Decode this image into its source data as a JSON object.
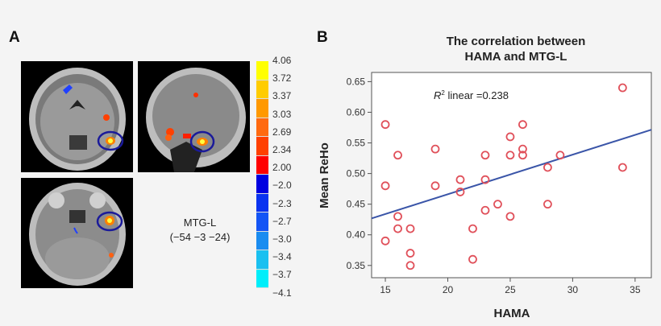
{
  "panel_a": {
    "label": "A",
    "roi_name": "MTG-L",
    "roi_coords": "(−54 −3 −24)",
    "colorbar": {
      "ticks": [
        "4.06",
        "3.72",
        "3.37",
        "3.03",
        "2.69",
        "2.34",
        "2.00",
        "−2.0",
        "−2.3",
        "−2.7",
        "−3.0",
        "−3.4",
        "−3.7",
        "−4.1"
      ],
      "colors": [
        "#ffff00",
        "#ffcc00",
        "#ff9900",
        "#ff6a10",
        "#ff4000",
        "#ff0000",
        "#0000e0",
        "#0a33f0",
        "#1455f5",
        "#1a8cf0",
        "#19c0f0",
        "#00eefa"
      ]
    },
    "views": [
      "coronal",
      "sagittal",
      "axial"
    ],
    "roi_circle_color": "#1a1a9a"
  },
  "panel_b": {
    "label": "B"
  },
  "chart_data": {
    "type": "scatter",
    "title": "The correlation between HAMA and MTG-L",
    "title_lines": [
      "The correlation between",
      "HAMA and MTG-L"
    ],
    "xlabel": "HAMA",
    "ylabel": "Mean ReHo",
    "xlim": [
      13.9,
      36.3
    ],
    "ylim": [
      0.33,
      0.665
    ],
    "xticks": [
      15,
      20,
      25,
      30,
      35
    ],
    "yticks": [
      "0.35",
      "0.40",
      "0.45",
      "0.50",
      "0.55",
      "0.60",
      "0.65"
    ],
    "annotation": {
      "r2_prefix": "R",
      "r2_sup": "2",
      "text": " linear =0.238"
    },
    "marker_color": "#e0505a",
    "line_color": "#3a55a8",
    "fit_line": {
      "slope": 0.00646,
      "intercept": 0.337
    },
    "grid": false,
    "points": [
      [
        15,
        0.58
      ],
      [
        15,
        0.48
      ],
      [
        15,
        0.39
      ],
      [
        16,
        0.53
      ],
      [
        16,
        0.43
      ],
      [
        16,
        0.41
      ],
      [
        17,
        0.41
      ],
      [
        17,
        0.37
      ],
      [
        17,
        0.35
      ],
      [
        19,
        0.54
      ],
      [
        19,
        0.48
      ],
      [
        21,
        0.49
      ],
      [
        21,
        0.47
      ],
      [
        22,
        0.41
      ],
      [
        22,
        0.36
      ],
      [
        23,
        0.53
      ],
      [
        23,
        0.49
      ],
      [
        23,
        0.44
      ],
      [
        24,
        0.45
      ],
      [
        25,
        0.56
      ],
      [
        25,
        0.53
      ],
      [
        25,
        0.43
      ],
      [
        26,
        0.58
      ],
      [
        26,
        0.54
      ],
      [
        26,
        0.53
      ],
      [
        28,
        0.51
      ],
      [
        28,
        0.45
      ],
      [
        29,
        0.53
      ],
      [
        34,
        0.64
      ],
      [
        34,
        0.51
      ]
    ]
  }
}
